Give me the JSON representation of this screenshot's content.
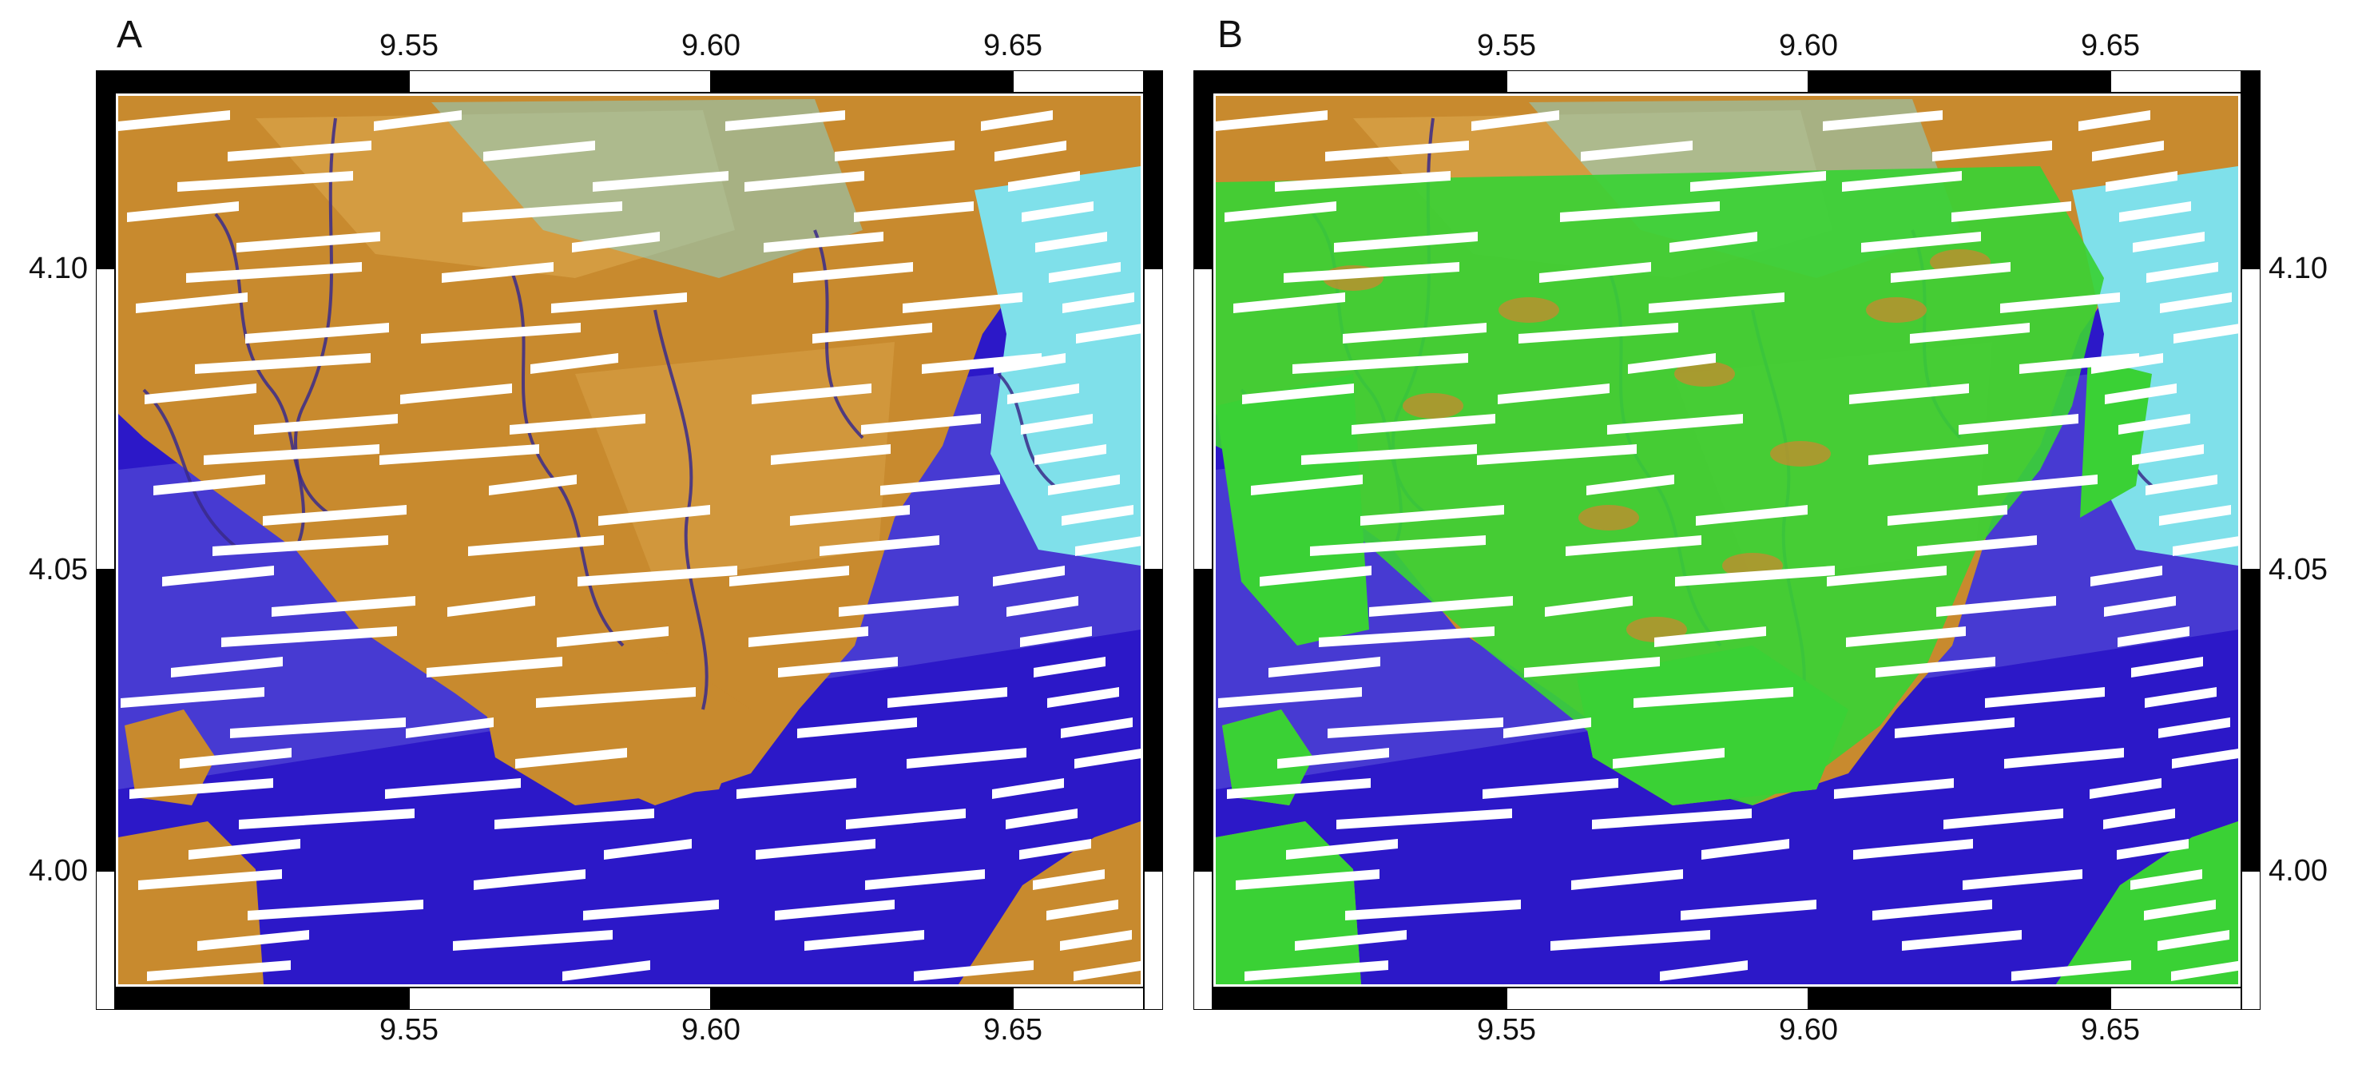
{
  "panels": [
    {
      "label": "A",
      "style": "false-color-composite"
    },
    {
      "label": "B",
      "style": "classified-overlay",
      "overlay_color": "#3ad135"
    }
  ],
  "axes": {
    "x_ticks": [
      "9.55",
      "9.60",
      "9.65"
    ],
    "y_ticks": [
      "4.10",
      "4.05",
      "4.00"
    ]
  },
  "colors": {
    "land": "#c88a2e",
    "land_light": "#d9a44a",
    "water_deep": "#2c18c8",
    "water_shallow": "#5a52d8",
    "turquoise": "#7fe0ea",
    "scanline_gap": "#ffffff",
    "channel": "#3a2a8a",
    "vegetation_class": "#3ad135"
  }
}
